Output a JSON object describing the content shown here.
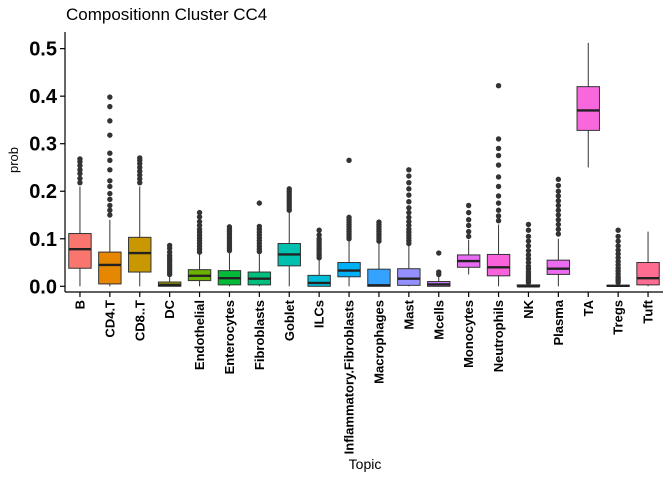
{
  "chart_data": {
    "type": "boxplot",
    "title": "Compositionn Cluster CC4",
    "xlabel": "Topic",
    "ylabel": "prob",
    "ylim": [
      -0.012,
      0.535
    ],
    "yticks": [
      0.0,
      0.1,
      0.2,
      0.3,
      0.4,
      0.5
    ],
    "ytick_labels": [
      "0.0",
      "0.1",
      "0.2",
      "0.3",
      "0.4",
      "0.5"
    ],
    "grid": false,
    "legend": "none",
    "categories": [
      "B",
      "CD4.T",
      "CD8..T",
      "DC",
      "Endothelial",
      "Enterocytes",
      "Fibroblasts",
      "Goblet",
      "ILCs",
      "Inflammatory.Fibroblasts",
      "Macrophages",
      "Mast",
      "Mcells",
      "Monocytes",
      "Neutrophils",
      "NK",
      "Plasma",
      "TA",
      "Tregs",
      "Tuft"
    ],
    "boxes": [
      {
        "name": "B",
        "color": "#F8766D",
        "min": 0.0,
        "q1": 0.038,
        "median": 0.078,
        "q3": 0.111,
        "max": 0.21,
        "outliers": [
          0.218,
          0.227,
          0.237,
          0.245,
          0.254,
          0.262,
          0.268
        ]
      },
      {
        "name": "CD4.T",
        "color": "#E58700",
        "min": 0.0,
        "q1": 0.005,
        "median": 0.045,
        "q3": 0.072,
        "max": 0.14,
        "outliers": [
          0.15,
          0.16,
          0.17,
          0.183,
          0.195,
          0.21,
          0.222,
          0.245,
          0.265,
          0.28,
          0.318,
          0.348,
          0.378,
          0.398
        ]
      },
      {
        "name": "CD8..T",
        "color": "#C99800",
        "min": 0.0,
        "q1": 0.03,
        "median": 0.07,
        "q3": 0.103,
        "max": 0.21,
        "outliers": [
          0.218,
          0.226,
          0.234,
          0.242,
          0.25,
          0.258,
          0.265,
          0.27
        ]
      },
      {
        "name": "DC",
        "color": "#A3A500",
        "min": 0.0,
        "q1": 0.0,
        "median": 0.003,
        "q3": 0.009,
        "max": 0.02,
        "outliers": [
          0.025,
          0.03,
          0.035,
          0.04,
          0.045,
          0.05,
          0.055,
          0.06,
          0.065,
          0.072,
          0.08,
          0.086
        ]
      },
      {
        "name": "Endothelial",
        "color": "#6BB100",
        "min": 0.0,
        "q1": 0.012,
        "median": 0.022,
        "q3": 0.035,
        "max": 0.067,
        "outliers": [
          0.072,
          0.078,
          0.084,
          0.09,
          0.096,
          0.102,
          0.108,
          0.114,
          0.12,
          0.128,
          0.136,
          0.146,
          0.155
        ]
      },
      {
        "name": "Enterocytes",
        "color": "#00BA38",
        "min": 0.0,
        "q1": 0.003,
        "median": 0.017,
        "q3": 0.033,
        "max": 0.07,
        "outliers": [
          0.075,
          0.08,
          0.085,
          0.09,
          0.095,
          0.1,
          0.105,
          0.11,
          0.115,
          0.12,
          0.125
        ]
      },
      {
        "name": "Fibroblasts",
        "color": "#00BF7D",
        "min": 0.0,
        "q1": 0.003,
        "median": 0.016,
        "q3": 0.03,
        "max": 0.068,
        "outliers": [
          0.073,
          0.078,
          0.084,
          0.09,
          0.096,
          0.102,
          0.108,
          0.114,
          0.12,
          0.126,
          0.175
        ]
      },
      {
        "name": "Goblet",
        "color": "#00C0AF",
        "min": 0.0,
        "q1": 0.043,
        "median": 0.067,
        "q3": 0.09,
        "max": 0.155,
        "outliers": [
          0.16,
          0.165,
          0.17,
          0.175,
          0.18,
          0.185,
          0.19,
          0.195,
          0.2,
          0.205
        ]
      },
      {
        "name": "ILCs",
        "color": "#00BCD8",
        "min": 0.0,
        "q1": 0.0,
        "median": 0.007,
        "q3": 0.023,
        "max": 0.055,
        "outliers": [
          0.06,
          0.065,
          0.07,
          0.075,
          0.08,
          0.085,
          0.09,
          0.095,
          0.1,
          0.108,
          0.118
        ]
      },
      {
        "name": "Inflammatory.Fibroblasts",
        "color": "#00B0F6",
        "min": 0.0,
        "q1": 0.02,
        "median": 0.033,
        "q3": 0.05,
        "max": 0.095,
        "outliers": [
          0.1,
          0.105,
          0.11,
          0.115,
          0.12,
          0.125,
          0.13,
          0.135,
          0.14,
          0.145,
          0.265
        ]
      },
      {
        "name": "Macrophages",
        "color": "#35A2FF",
        "min": 0.0,
        "q1": 0.0,
        "median": 0.002,
        "q3": 0.036,
        "max": 0.09,
        "outliers": [
          0.095,
          0.1,
          0.105,
          0.11,
          0.115,
          0.12,
          0.125,
          0.13,
          0.135
        ]
      },
      {
        "name": "Mast",
        "color": "#9590FF",
        "min": 0.0,
        "q1": 0.002,
        "median": 0.016,
        "q3": 0.037,
        "max": 0.085,
        "outliers": [
          0.09,
          0.096,
          0.102,
          0.108,
          0.114,
          0.12,
          0.128,
          0.136,
          0.145,
          0.155,
          0.165,
          0.178,
          0.192,
          0.205,
          0.218,
          0.232,
          0.245
        ]
      },
      {
        "name": "Mcells",
        "color": "#C77CFF",
        "min": 0.0,
        "q1": 0.0,
        "median": 0.004,
        "q3": 0.01,
        "max": 0.02,
        "outliers": [
          0.025,
          0.03,
          0.07
        ]
      },
      {
        "name": "Monocytes",
        "color": "#E76BF3",
        "min": 0.025,
        "q1": 0.04,
        "median": 0.053,
        "q3": 0.066,
        "max": 0.098,
        "outliers": [
          0.105,
          0.115,
          0.128,
          0.14,
          0.155,
          0.17
        ]
      },
      {
        "name": "Neutrophils",
        "color": "#FA62DB",
        "min": 0.0,
        "q1": 0.022,
        "median": 0.04,
        "q3": 0.067,
        "max": 0.13,
        "outliers": [
          0.138,
          0.148,
          0.16,
          0.175,
          0.19,
          0.21,
          0.23,
          0.255,
          0.275,
          0.29,
          0.31,
          0.422
        ]
      },
      {
        "name": "NK",
        "color": "#FF62BC",
        "min": 0.0,
        "q1": 0.0,
        "median": 0.0,
        "q3": 0.003,
        "max": 0.005,
        "outliers": [
          0.008,
          0.012,
          0.016,
          0.02,
          0.025,
          0.03,
          0.036,
          0.042,
          0.05,
          0.058,
          0.066,
          0.075,
          0.085,
          0.095,
          0.105,
          0.118,
          0.13
        ]
      },
      {
        "name": "Plasma",
        "color": "#E96BF0",
        "min": 0.0,
        "q1": 0.025,
        "median": 0.037,
        "q3": 0.055,
        "max": 0.1,
        "outliers": [
          0.11,
          0.12,
          0.13,
          0.14,
          0.15,
          0.16,
          0.17,
          0.18,
          0.19,
          0.2,
          0.212,
          0.225
        ]
      },
      {
        "name": "TA",
        "color": "#F967DD",
        "min": 0.25,
        "q1": 0.328,
        "median": 0.37,
        "q3": 0.42,
        "max": 0.512,
        "outliers": []
      },
      {
        "name": "Tregs",
        "color": "#FF67C0",
        "min": 0.0,
        "q1": 0.0,
        "median": 0.001,
        "q3": 0.002,
        "max": 0.004,
        "outliers": [
          0.008,
          0.012,
          0.016,
          0.02,
          0.026,
          0.032,
          0.038,
          0.045,
          0.052,
          0.06,
          0.068,
          0.076,
          0.085,
          0.095,
          0.105,
          0.118
        ]
      },
      {
        "name": "Tuft",
        "color": "#FF6C91",
        "min": 0.0,
        "q1": 0.003,
        "median": 0.017,
        "q3": 0.05,
        "max": 0.115,
        "outliers": []
      }
    ]
  }
}
